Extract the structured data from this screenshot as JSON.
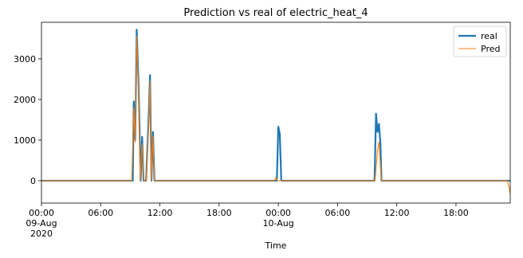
{
  "chart_data": {
    "type": "line",
    "title": "Prediction vs real of electric_heat_4",
    "xlabel": "Time",
    "ylabel": "",
    "x_range_hours": [
      0,
      47.5
    ],
    "ylim": [
      -550,
      3900
    ],
    "y_ticks": [
      0,
      1000,
      2000,
      3000
    ],
    "y_tick_labels": [
      "0",
      "1000",
      "2000",
      "3000"
    ],
    "x_ticks": [
      {
        "hours": 0,
        "label": "00:00",
        "sub": "09-Aug",
        "year": "2020"
      },
      {
        "hours": 6,
        "label": "06:00",
        "sub": "",
        "year": ""
      },
      {
        "hours": 12,
        "label": "12:00",
        "sub": "",
        "year": ""
      },
      {
        "hours": 18,
        "label": "18:00",
        "sub": "",
        "year": ""
      },
      {
        "hours": 24,
        "label": "00:00",
        "sub": "10-Aug",
        "year": ""
      },
      {
        "hours": 30,
        "label": "06:00",
        "sub": "",
        "year": ""
      },
      {
        "hours": 36,
        "label": "12:00",
        "sub": "",
        "year": ""
      },
      {
        "hours": 42,
        "label": "18:00",
        "sub": "",
        "year": ""
      }
    ],
    "legend_position": "top-right",
    "grid": false,
    "series": [
      {
        "name": "real",
        "color": "#1f77b4",
        "points": [
          [
            0,
            0
          ],
          [
            9.25,
            0
          ],
          [
            9.35,
            1950
          ],
          [
            9.5,
            1000
          ],
          [
            9.65,
            3720
          ],
          [
            9.85,
            2300
          ],
          [
            10.05,
            0
          ],
          [
            10.2,
            1080
          ],
          [
            10.35,
            0
          ],
          [
            10.6,
            0
          ],
          [
            10.85,
            1500
          ],
          [
            11.0,
            2600
          ],
          [
            11.15,
            0
          ],
          [
            11.3,
            1200
          ],
          [
            11.45,
            0
          ],
          [
            23.75,
            0
          ],
          [
            23.85,
            0
          ],
          [
            24.0,
            1330
          ],
          [
            24.15,
            1150
          ],
          [
            24.3,
            0
          ],
          [
            33.75,
            0
          ],
          [
            33.9,
            1650
          ],
          [
            34.05,
            1200
          ],
          [
            34.2,
            1400
          ],
          [
            34.35,
            900
          ],
          [
            34.45,
            0
          ],
          [
            47.5,
            0
          ]
        ]
      },
      {
        "name": "Pred",
        "color": "#ff7f0e",
        "points": [
          [
            0,
            0
          ],
          [
            9.15,
            0
          ],
          [
            9.35,
            1800
          ],
          [
            9.5,
            950
          ],
          [
            9.65,
            3550
          ],
          [
            9.85,
            2100
          ],
          [
            10.0,
            0
          ],
          [
            10.2,
            900
          ],
          [
            10.4,
            0
          ],
          [
            10.6,
            0
          ],
          [
            10.85,
            1300
          ],
          [
            11.0,
            2450
          ],
          [
            11.15,
            0
          ],
          [
            11.3,
            1100
          ],
          [
            11.45,
            0
          ],
          [
            23.6,
            0
          ],
          [
            23.75,
            80
          ],
          [
            23.9,
            0
          ],
          [
            33.8,
            0
          ],
          [
            34.05,
            750
          ],
          [
            34.2,
            950
          ],
          [
            34.35,
            350
          ],
          [
            34.45,
            0
          ],
          [
            47.2,
            0
          ],
          [
            47.4,
            -180
          ],
          [
            47.5,
            -330
          ]
        ]
      }
    ]
  }
}
